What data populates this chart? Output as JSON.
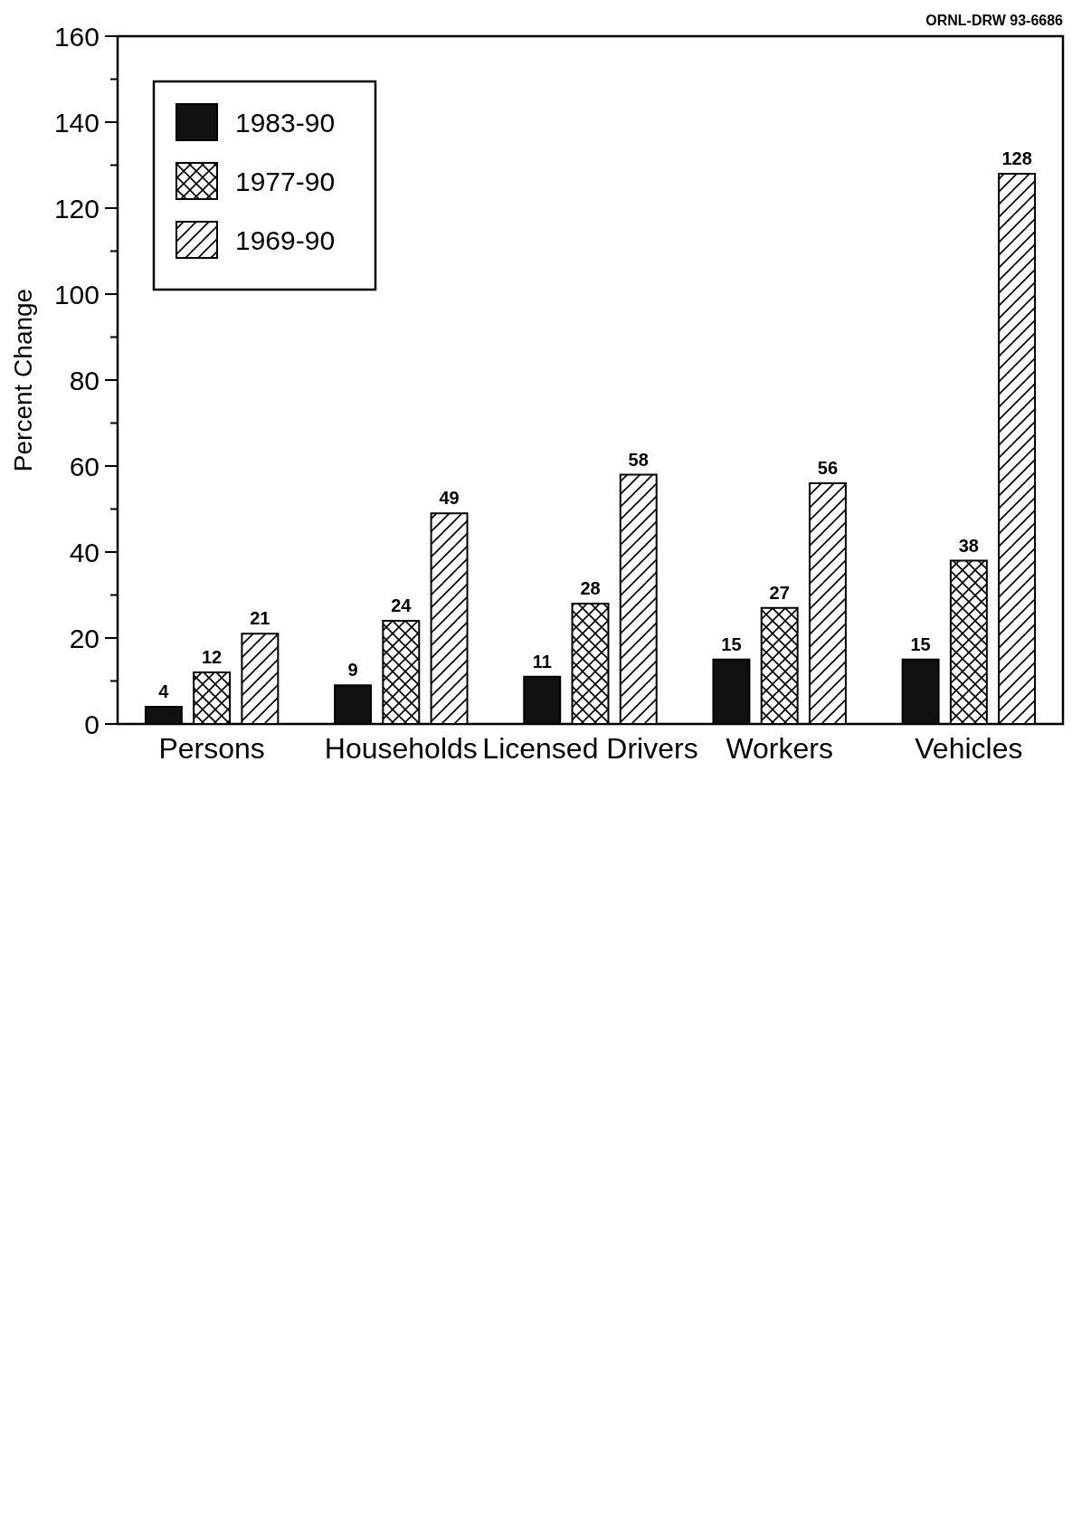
{
  "chart_data": {
    "type": "bar",
    "ylabel": "Percent Change",
    "categories": [
      "Persons",
      "Households",
      "Licensed Drivers",
      "Workers",
      "Vehicles"
    ],
    "series": [
      {
        "name": "1983-90",
        "color": "#111111",
        "values": [
          4,
          9,
          11,
          15,
          15
        ]
      },
      {
        "name": "1977-90",
        "color": "#000000",
        "values": [
          12,
          24,
          28,
          27,
          38
        ]
      },
      {
        "name": "1969-90",
        "color": "#000000",
        "values": [
          21,
          49,
          58,
          56,
          128
        ]
      }
    ],
    "ylim": [
      0,
      160
    ],
    "yticks": [
      0,
      {
        "value": 10,
        "label": null
      },
      20,
      {
        "value": 30,
        "label": null
      },
      40,
      {
        "value": 50,
        "label": null
      },
      60,
      {
        "value": 70,
        "label": null
      },
      80,
      {
        "value": 90,
        "label": null
      },
      100,
      {
        "value": 110,
        "label": null
      },
      120,
      {
        "value": 130,
        "label": null
      },
      140,
      {
        "value": 150,
        "label": null
      },
      160
    ],
    "data_labels": true,
    "legend": "top left",
    "grid": false,
    "annotations": [
      "ORNL-DRW 93-6686"
    ]
  }
}
